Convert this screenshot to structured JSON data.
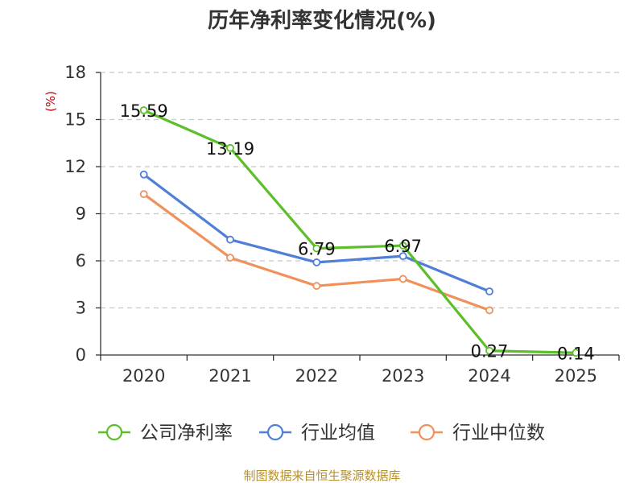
{
  "chart_data": {
    "type": "line",
    "title": "历年净利率变化情况(%)",
    "ylabel": "(%)",
    "xlabel": "",
    "categories": [
      "2020",
      "2021",
      "2022",
      "2023",
      "2024",
      "2025"
    ],
    "ylim": [
      0,
      18
    ],
    "yticks": [
      0,
      3,
      6,
      9,
      12,
      15,
      18
    ],
    "grid": true,
    "legend_position": "bottom",
    "series": [
      {
        "name": "公司净利率",
        "color": "#5cbf2a",
        "values": [
          15.59,
          13.19,
          6.79,
          6.97,
          0.27,
          0.14
        ],
        "labels": [
          "15.59",
          "13.19",
          "6.79",
          "6.97",
          "0.27",
          "0.14"
        ]
      },
      {
        "name": "行业均值",
        "color": "#4f7fd6",
        "values": [
          11.5,
          7.35,
          5.9,
          6.3,
          4.05,
          null
        ]
      },
      {
        "name": "行业中位数",
        "color": "#f0905a",
        "values": [
          10.25,
          6.2,
          4.4,
          4.85,
          2.85,
          null
        ]
      }
    ],
    "source": "制图数据来自恒生聚源数据库"
  }
}
